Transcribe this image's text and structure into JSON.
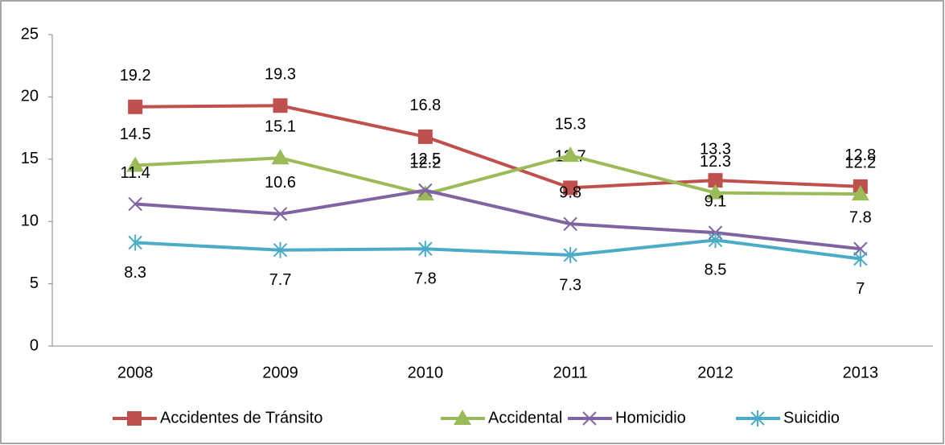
{
  "chart_data": {
    "type": "line",
    "categories": [
      "2008",
      "2009",
      "2010",
      "2011",
      "2012",
      "2013"
    ],
    "series": [
      {
        "name": "Accidentes de Tránsito",
        "color": "#c0504d",
        "marker": "square",
        "values": [
          19.2,
          19.3,
          16.8,
          12.7,
          13.3,
          12.8
        ]
      },
      {
        "name": "Accidental",
        "color": "#9bbb59",
        "marker": "triangle",
        "values": [
          14.5,
          15.1,
          12.2,
          15.3,
          12.3,
          12.2
        ]
      },
      {
        "name": "Homicidio",
        "color": "#8064a2",
        "marker": "x",
        "values": [
          11.4,
          10.6,
          12.5,
          9.8,
          9.1,
          7.8
        ]
      },
      {
        "name": "Suicidio",
        "color": "#4bacc6",
        "marker": "asterisk",
        "values": [
          8.3,
          7.7,
          7.8,
          7.3,
          8.5,
          7
        ]
      }
    ],
    "ylim": [
      0,
      25
    ],
    "yticks": [
      0,
      5,
      10,
      15,
      20,
      25
    ],
    "grid": false,
    "legend": "bottom"
  }
}
